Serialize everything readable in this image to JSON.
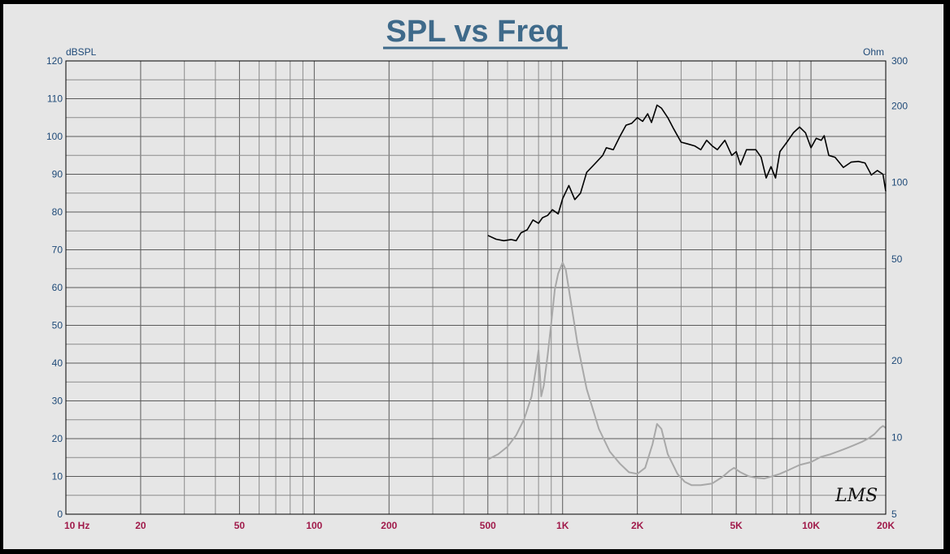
{
  "chart_data": {
    "type": "line",
    "title": "SPL vs Freq",
    "x_scale": "log",
    "xlim": [
      10,
      20000
    ],
    "x_tick_labels": [
      {
        "value": 10,
        "label": "10  Hz"
      },
      {
        "value": 20,
        "label": "20"
      },
      {
        "value": 50,
        "label": "50"
      },
      {
        "value": 100,
        "label": "100"
      },
      {
        "value": 200,
        "label": "200"
      },
      {
        "value": 500,
        "label": "500"
      },
      {
        "value": 1000,
        "label": "1K"
      },
      {
        "value": 2000,
        "label": "2K"
      },
      {
        "value": 5000,
        "label": "5K"
      },
      {
        "value": 10000,
        "label": "10K"
      },
      {
        "value": 20000,
        "label": "20K"
      }
    ],
    "y_left": {
      "label": "dBSPL",
      "lim": [
        0,
        120
      ],
      "ticks": [
        0,
        10,
        20,
        30,
        40,
        50,
        60,
        70,
        80,
        90,
        100,
        110,
        120
      ]
    },
    "y_right": {
      "label": "Ohm",
      "scale": "log",
      "lim": [
        5,
        300
      ],
      "ticks": [
        5,
        10,
        20,
        50,
        100,
        200,
        300
      ]
    },
    "grid": true,
    "series": [
      {
        "axis": "left",
        "color": "#000000",
        "points": [
          [
            500,
            73.8
          ],
          [
            540,
            72.8
          ],
          [
            580,
            72.4
          ],
          [
            620,
            72.7
          ],
          [
            650,
            72.4
          ],
          [
            680,
            74.5
          ],
          [
            720,
            75.3
          ],
          [
            760,
            77.9
          ],
          [
            800,
            77.0
          ],
          [
            830,
            78.5
          ],
          [
            870,
            79.1
          ],
          [
            910,
            80.6
          ],
          [
            960,
            79.5
          ],
          [
            1000,
            83.5
          ],
          [
            1060,
            87.0
          ],
          [
            1120,
            83.3
          ],
          [
            1180,
            85.0
          ],
          [
            1250,
            90.5
          ],
          [
            1350,
            92.8
          ],
          [
            1450,
            95.0
          ],
          [
            1500,
            97.0
          ],
          [
            1600,
            96.5
          ],
          [
            1700,
            100.0
          ],
          [
            1800,
            103.0
          ],
          [
            1900,
            103.5
          ],
          [
            2000,
            105.0
          ],
          [
            2100,
            104.0
          ],
          [
            2200,
            106.0
          ],
          [
            2280,
            103.7
          ],
          [
            2400,
            108.3
          ],
          [
            2500,
            107.5
          ],
          [
            2650,
            105.0
          ],
          [
            2800,
            102.0
          ],
          [
            3000,
            98.5
          ],
          [
            3200,
            98.0
          ],
          [
            3400,
            97.5
          ],
          [
            3600,
            96.5
          ],
          [
            3800,
            99.0
          ],
          [
            4000,
            97.5
          ],
          [
            4200,
            96.5
          ],
          [
            4500,
            99.0
          ],
          [
            4800,
            95.0
          ],
          [
            5000,
            96.0
          ],
          [
            5200,
            92.5
          ],
          [
            5500,
            96.5
          ],
          [
            6000,
            96.5
          ],
          [
            6300,
            94.5
          ],
          [
            6600,
            89.0
          ],
          [
            6900,
            92.0
          ],
          [
            7200,
            89.0
          ],
          [
            7500,
            96.0
          ],
          [
            8000,
            98.5
          ],
          [
            8500,
            101.0
          ],
          [
            9000,
            102.5
          ],
          [
            9500,
            101.0
          ],
          [
            10000,
            97.0
          ],
          [
            10500,
            99.5
          ],
          [
            11000,
            99.0
          ],
          [
            11300,
            100.2
          ],
          [
            11800,
            95.0
          ],
          [
            12500,
            94.5
          ],
          [
            13500,
            91.8
          ],
          [
            14500,
            93.2
          ],
          [
            15500,
            93.4
          ],
          [
            16500,
            93.0
          ],
          [
            17500,
            89.8
          ],
          [
            18500,
            91.0
          ],
          [
            19500,
            90.0
          ],
          [
            20000,
            85.5
          ]
        ]
      },
      {
        "axis": "right",
        "color": "#a8a8a8",
        "points": [
          [
            500,
            8.2
          ],
          [
            550,
            8.6
          ],
          [
            600,
            9.2
          ],
          [
            650,
            10.2
          ],
          [
            700,
            11.8
          ],
          [
            750,
            14.5
          ],
          [
            780,
            18.5
          ],
          [
            800,
            22.0
          ],
          [
            820,
            14.5
          ],
          [
            840,
            16.0
          ],
          [
            870,
            21.0
          ],
          [
            900,
            28.0
          ],
          [
            930,
            38.0
          ],
          [
            960,
            44.0
          ],
          [
            1000,
            48.5
          ],
          [
            1030,
            45.5
          ],
          [
            1080,
            34.0
          ],
          [
            1150,
            23.0
          ],
          [
            1250,
            15.5
          ],
          [
            1400,
            10.8
          ],
          [
            1550,
            8.8
          ],
          [
            1700,
            7.9
          ],
          [
            1850,
            7.3
          ],
          [
            2000,
            7.2
          ],
          [
            2150,
            7.6
          ],
          [
            2300,
            9.4
          ],
          [
            2400,
            11.3
          ],
          [
            2500,
            10.8
          ],
          [
            2650,
            8.6
          ],
          [
            2900,
            7.2
          ],
          [
            3100,
            6.7
          ],
          [
            3300,
            6.5
          ],
          [
            3600,
            6.5
          ],
          [
            4000,
            6.6
          ],
          [
            4400,
            7.0
          ],
          [
            4700,
            7.4
          ],
          [
            4900,
            7.6
          ],
          [
            5200,
            7.3
          ],
          [
            5600,
            7.05
          ],
          [
            6000,
            6.95
          ],
          [
            6500,
            6.9
          ],
          [
            7000,
            7.05
          ],
          [
            7500,
            7.2
          ],
          [
            8000,
            7.4
          ],
          [
            8500,
            7.6
          ],
          [
            9000,
            7.8
          ],
          [
            10000,
            8.0
          ],
          [
            11000,
            8.4
          ],
          [
            12000,
            8.6
          ],
          [
            13000,
            8.85
          ],
          [
            14000,
            9.1
          ],
          [
            15000,
            9.35
          ],
          [
            16000,
            9.6
          ],
          [
            17000,
            9.9
          ],
          [
            18000,
            10.3
          ],
          [
            19000,
            10.9
          ],
          [
            19500,
            11.1
          ],
          [
            20000,
            10.9
          ]
        ]
      }
    ]
  },
  "watermark": "LMS"
}
